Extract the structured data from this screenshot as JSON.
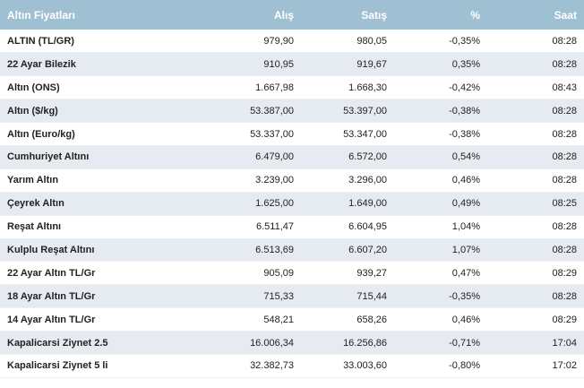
{
  "header": {
    "title": "Altın Fiyatları",
    "alis": "Alış",
    "satis": "Satış",
    "percent": "%",
    "saat": "Saat"
  },
  "rows": [
    {
      "name": "ALTIN (TL/GR)",
      "alis": "979,90",
      "satis": "980,05",
      "pct": "-0,35%",
      "saat": "08:28"
    },
    {
      "name": "22 Ayar Bilezik",
      "alis": "910,95",
      "satis": "919,67",
      "pct": "0,35%",
      "saat": "08:28"
    },
    {
      "name": "Altın (ONS)",
      "alis": "1.667,98",
      "satis": "1.668,30",
      "pct": "-0,42%",
      "saat": "08:43"
    },
    {
      "name": "Altın ($/kg)",
      "alis": "53.387,00",
      "satis": "53.397,00",
      "pct": "-0,38%",
      "saat": "08:28"
    },
    {
      "name": "Altın (Euro/kg)",
      "alis": "53.337,00",
      "satis": "53.347,00",
      "pct": "-0,38%",
      "saat": "08:28"
    },
    {
      "name": "Cumhuriyet Altını",
      "alis": "6.479,00",
      "satis": "6.572,00",
      "pct": "0,54%",
      "saat": "08:28"
    },
    {
      "name": "Yarım Altın",
      "alis": "3.239,00",
      "satis": "3.296,00",
      "pct": "0,46%",
      "saat": "08:28"
    },
    {
      "name": "Çeyrek Altın",
      "alis": "1.625,00",
      "satis": "1.649,00",
      "pct": "0,49%",
      "saat": "08:25"
    },
    {
      "name": "Reşat Altını",
      "alis": "6.511,47",
      "satis": "6.604,95",
      "pct": "1,04%",
      "saat": "08:28"
    },
    {
      "name": "Kulplu Reşat Altını",
      "alis": "6.513,69",
      "satis": "6.607,20",
      "pct": "1,07%",
      "saat": "08:28"
    },
    {
      "name": "22 Ayar Altın TL/Gr",
      "alis": "905,09",
      "satis": "939,27",
      "pct": "0,47%",
      "saat": "08:29"
    },
    {
      "name": "18 Ayar Altın TL/Gr",
      "alis": "715,33",
      "satis": "715,44",
      "pct": "-0,35%",
      "saat": "08:28"
    },
    {
      "name": "14 Ayar Altın TL/Gr",
      "alis": "548,21",
      "satis": "658,26",
      "pct": "0,46%",
      "saat": "08:29"
    },
    {
      "name": "Kapalicarsi Ziynet 2.5",
      "alis": "16.006,34",
      "satis": "16.256,86",
      "pct": "-0,71%",
      "saat": "17:04"
    },
    {
      "name": "Kapalicarsi Ziynet 5 li",
      "alis": "32.382,73",
      "satis": "33.003,60",
      "pct": "-0,80%",
      "saat": "17:02"
    }
  ]
}
